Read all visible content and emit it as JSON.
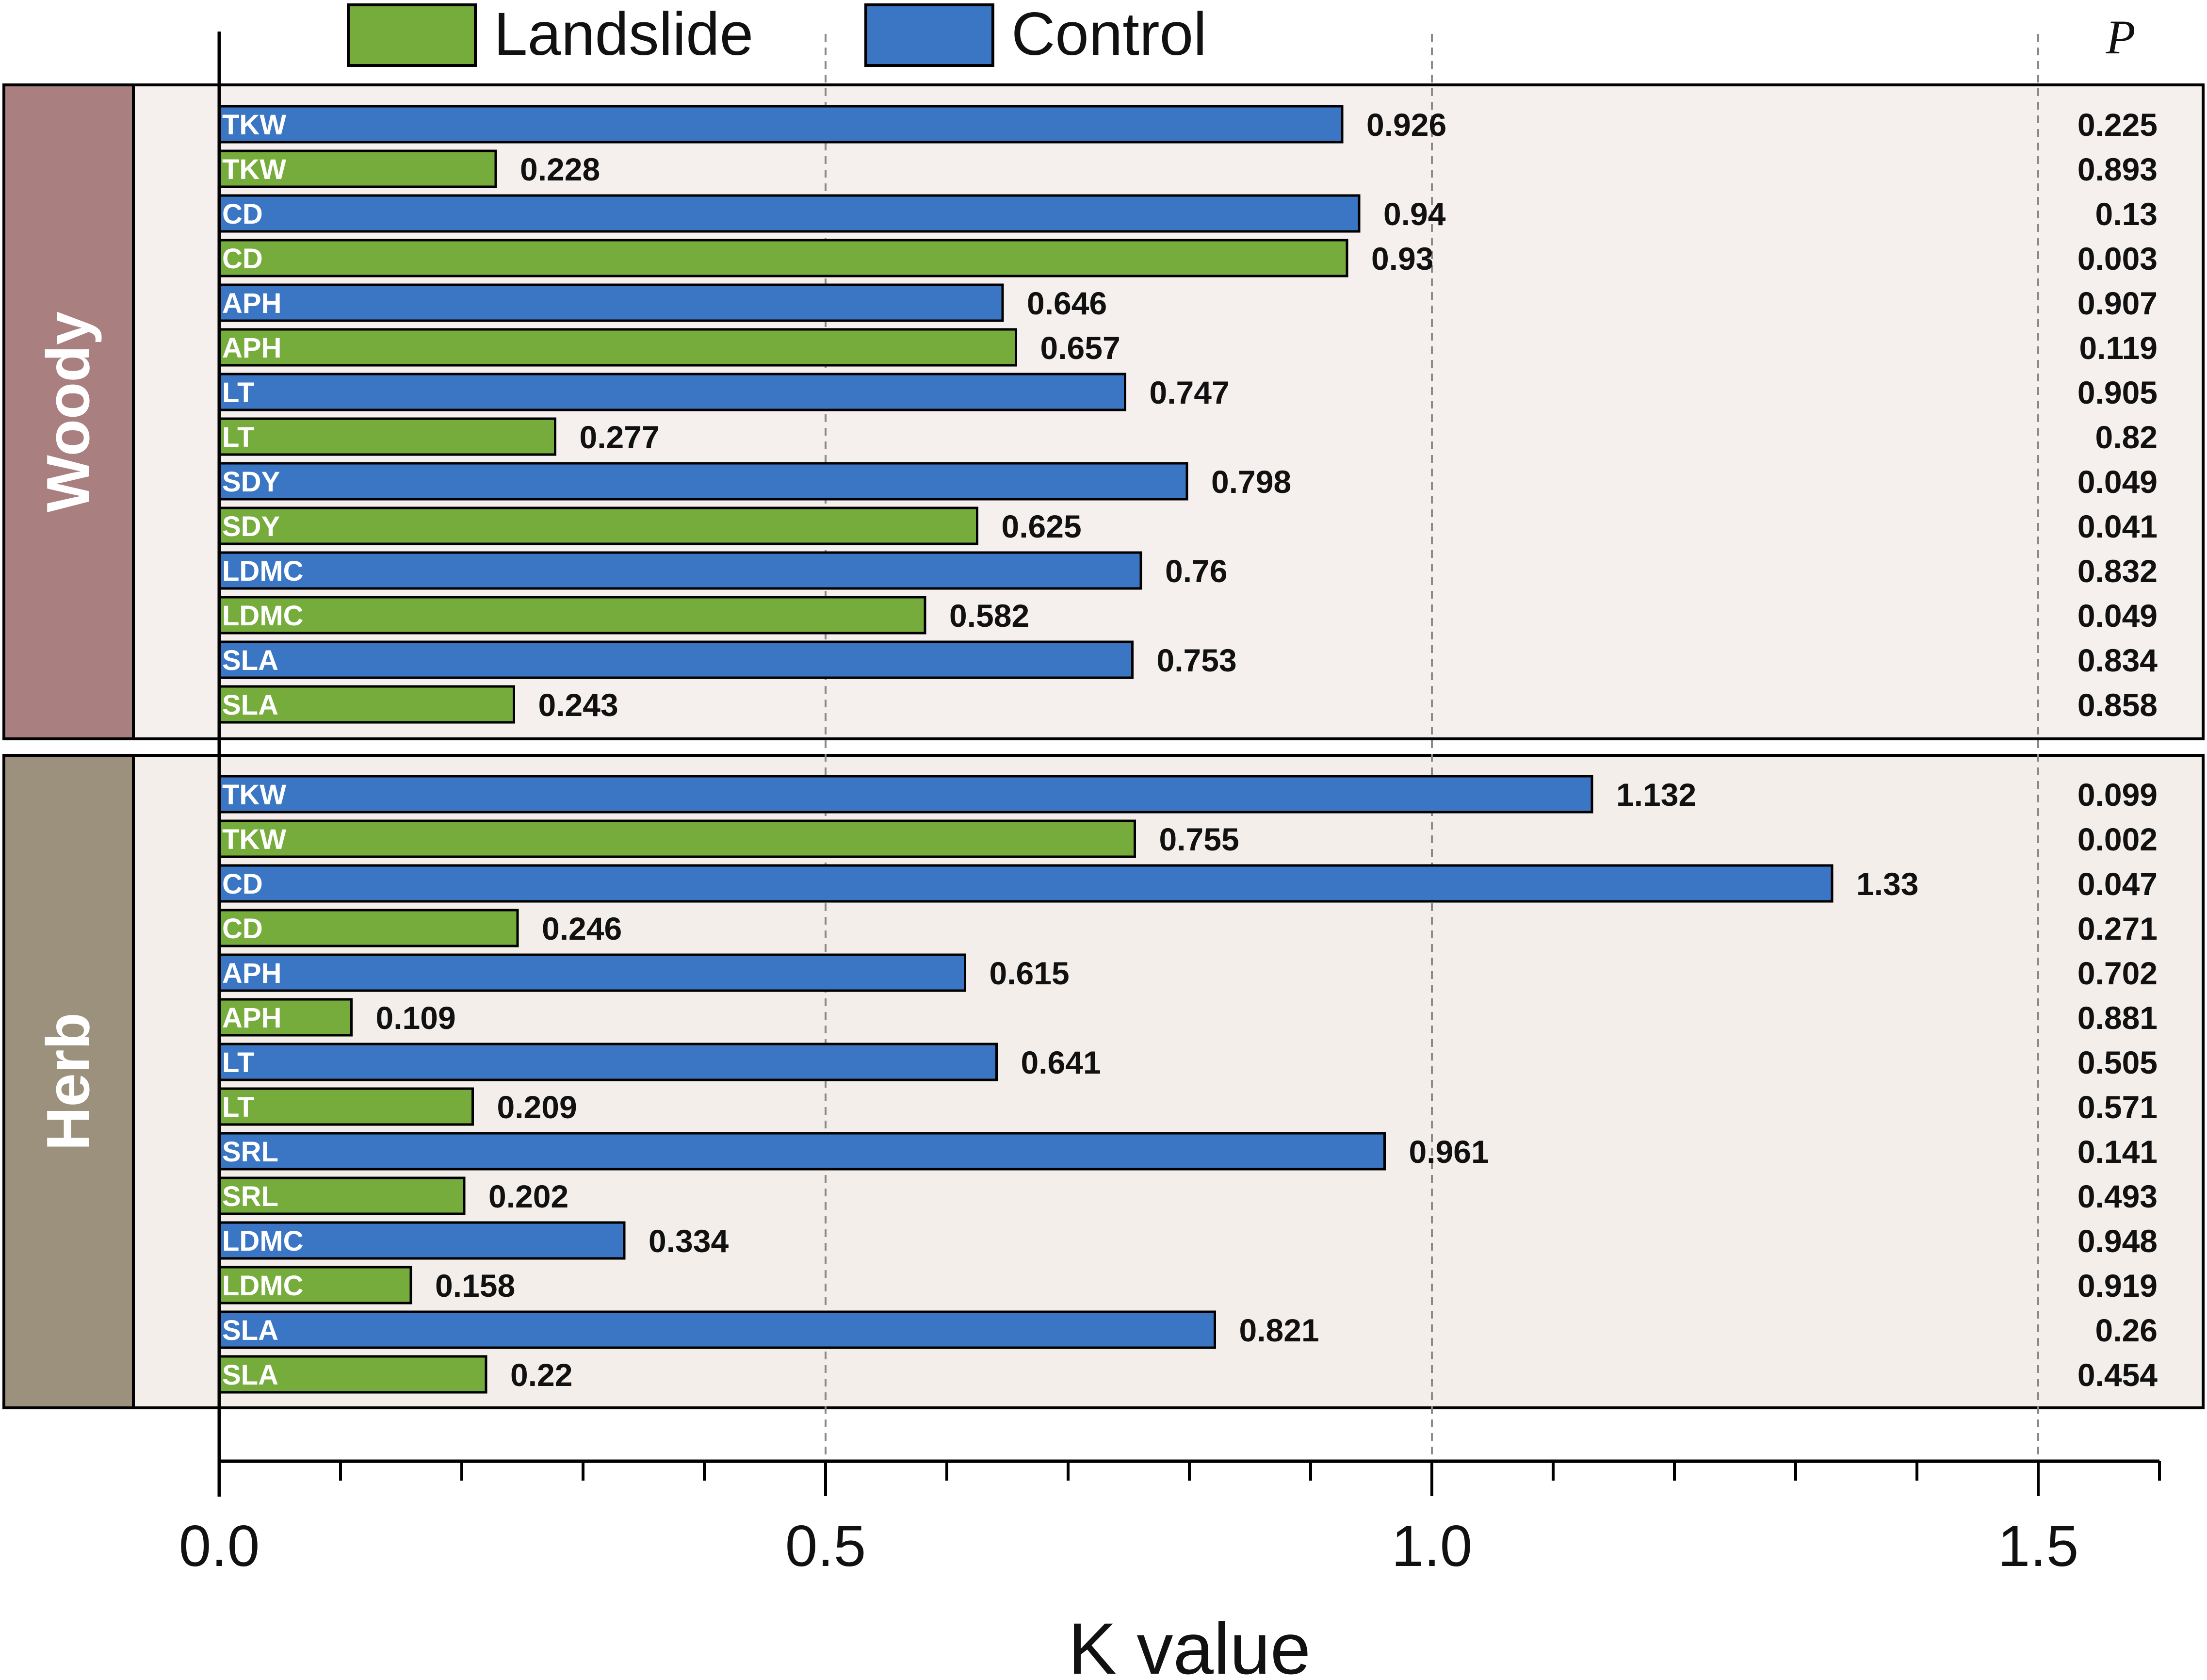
{
  "chart_data": {
    "type": "bar",
    "orientation": "horizontal",
    "xlabel": "K value",
    "xlim": [
      0,
      1.6
    ],
    "xticks": [
      "0.0",
      "0.5",
      "1.0",
      "1.5"
    ],
    "p_header": "P",
    "legend": [
      {
        "name": "Landslide",
        "color": "#76ac3c"
      },
      {
        "name": "Control",
        "color": "#3a76c3"
      }
    ],
    "groups": [
      {
        "name": "Woody",
        "panel_color": "#a97f80",
        "bg_color": "#f5efee",
        "bars": [
          {
            "trait": "TKW",
            "series": "Control",
            "value": 0.926,
            "label": "0.926",
            "p": "0.225"
          },
          {
            "trait": "TKW",
            "series": "Landslide",
            "value": 0.228,
            "label": "0.228",
            "p": "0.893"
          },
          {
            "trait": "CD",
            "series": "Control",
            "value": 0.94,
            "label": "0.94",
            "p": "0.13"
          },
          {
            "trait": "CD",
            "series": "Landslide",
            "value": 0.93,
            "label": "0.93",
            "p": "0.003"
          },
          {
            "trait": "APH",
            "series": "Control",
            "value": 0.646,
            "label": "0.646",
            "p": "0.907"
          },
          {
            "trait": "APH",
            "series": "Landslide",
            "value": 0.657,
            "label": "0.657",
            "p": "0.119"
          },
          {
            "trait": "LT",
            "series": "Control",
            "value": 0.747,
            "label": "0.747",
            "p": "0.905"
          },
          {
            "trait": "LT",
            "series": "Landslide",
            "value": 0.277,
            "label": "0.277",
            "p": "0.82"
          },
          {
            "trait": "SDY",
            "series": "Control",
            "value": 0.798,
            "label": "0.798",
            "p": "0.049"
          },
          {
            "trait": "SDY",
            "series": "Landslide",
            "value": 0.625,
            "label": "0.625",
            "p": "0.041"
          },
          {
            "trait": "LDMC",
            "series": "Control",
            "value": 0.76,
            "label": "0.76",
            "p": "0.832"
          },
          {
            "trait": "LDMC",
            "series": "Landslide",
            "value": 0.582,
            "label": "0.582",
            "p": "0.049"
          },
          {
            "trait": "SLA",
            "series": "Control",
            "value": 0.753,
            "label": "0.753",
            "p": "0.834"
          },
          {
            "trait": "SLA",
            "series": "Landslide",
            "value": 0.243,
            "label": "0.243",
            "p": "0.858"
          }
        ]
      },
      {
        "name": "Herb",
        "panel_color": "#9b917c",
        "bg_color": "#f3eeea",
        "bars": [
          {
            "trait": "TKW",
            "series": "Control",
            "value": 1.132,
            "label": "1.132",
            "p": "0.099"
          },
          {
            "trait": "TKW",
            "series": "Landslide",
            "value": 0.755,
            "label": "0.755",
            "p": "0.002"
          },
          {
            "trait": "CD",
            "series": "Control",
            "value": 1.33,
            "label": "1.33",
            "p": "0.047"
          },
          {
            "trait": "CD",
            "series": "Landslide",
            "value": 0.246,
            "label": "0.246",
            "p": "0.271"
          },
          {
            "trait": "APH",
            "series": "Control",
            "value": 0.615,
            "label": "0.615",
            "p": "0.702"
          },
          {
            "trait": "APH",
            "series": "Landslide",
            "value": 0.109,
            "label": "0.109",
            "p": "0.881"
          },
          {
            "trait": "LT",
            "series": "Control",
            "value": 0.641,
            "label": "0.641",
            "p": "0.505"
          },
          {
            "trait": "LT",
            "series": "Landslide",
            "value": 0.209,
            "label": "0.209",
            "p": "0.571"
          },
          {
            "trait": "SRL",
            "series": "Control",
            "value": 0.961,
            "label": "0.961",
            "p": "0.141"
          },
          {
            "trait": "SRL",
            "series": "Landslide",
            "value": 0.202,
            "label": "0.202",
            "p": "0.493"
          },
          {
            "trait": "LDMC",
            "series": "Control",
            "value": 0.334,
            "label": "0.334",
            "p": "0.948"
          },
          {
            "trait": "LDMC",
            "series": "Landslide",
            "value": 0.158,
            "label": "0.158",
            "p": "0.919"
          },
          {
            "trait": "SLA",
            "series": "Control",
            "value": 0.821,
            "label": "0.821",
            "p": "0.26"
          },
          {
            "trait": "SLA",
            "series": "Landslide",
            "value": 0.22,
            "label": "0.22",
            "p": "0.454"
          }
        ]
      }
    ]
  }
}
